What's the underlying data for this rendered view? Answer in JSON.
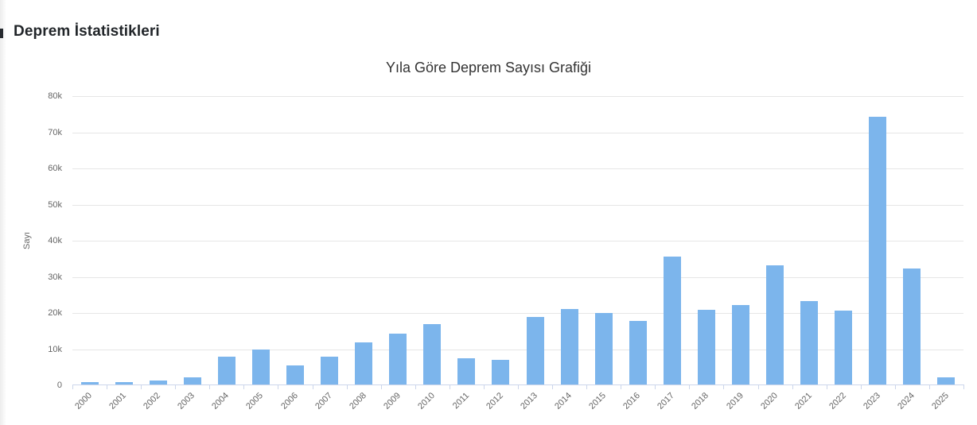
{
  "page": {
    "title": "Deprem İstatistikleri"
  },
  "chart": {
    "title": "Yıla Göre Deprem Sayısı Grafiği",
    "yaxis_title": "Sayı"
  },
  "colors": {
    "bar": "#7cb5ec",
    "gridline": "#e6e6e6",
    "axis_line": "#ccd6eb",
    "tick_label": "#666666",
    "chart_title": "#333333",
    "page_title": "#212529"
  },
  "chart_data": {
    "type": "bar",
    "title": "Yıla Göre Deprem Sayısı Grafiği",
    "xlabel": "",
    "ylabel": "Sayı",
    "categories": [
      "2000",
      "2001",
      "2002",
      "2003",
      "2004",
      "2005",
      "2006",
      "2007",
      "2008",
      "2009",
      "2010",
      "2011",
      "2012",
      "2013",
      "2014",
      "2015",
      "2016",
      "2017",
      "2018",
      "2019",
      "2020",
      "2021",
      "2022",
      "2023",
      "2024",
      "2025"
    ],
    "values": [
      700,
      700,
      1200,
      2000,
      7700,
      9600,
      5200,
      7800,
      11700,
      14000,
      16600,
      7200,
      6900,
      18600,
      20800,
      19800,
      17500,
      35400,
      20700,
      21900,
      32900,
      23100,
      20500,
      74100,
      32000,
      1900
    ],
    "ylim": [
      0,
      80000
    ],
    "yticks": [
      0,
      10000,
      20000,
      30000,
      40000,
      50000,
      60000,
      70000,
      80000
    ],
    "ytick_labels": [
      "0",
      "10k",
      "20k",
      "30k",
      "40k",
      "50k",
      "60k",
      "70k",
      "80k"
    ],
    "grid": true,
    "legend": false,
    "x_label_rotation": -45
  }
}
